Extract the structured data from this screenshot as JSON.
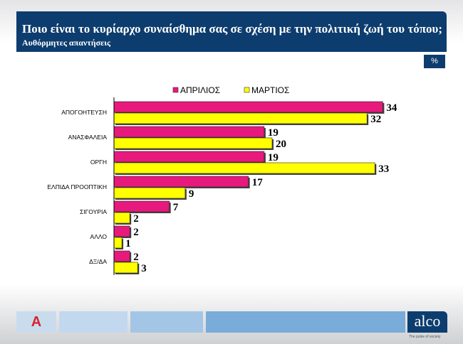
{
  "header": {
    "title": "Ποιο είναι το κυρίαρχο συναίσθημα σας σε σχέση με την πολιτική ζωή του τόπου;",
    "subtitle": "Αυθόρμητες απαντήσεις",
    "unit": "%"
  },
  "footer": {
    "brand": "alco",
    "tagline": "The pulse of society",
    "left_logo": "A"
  },
  "chart_data": {
    "type": "bar",
    "orientation": "horizontal",
    "title": "Ποιο είναι το κυρίαρχο συναίσθημα σας σε σχέση με την πολιτική ζωή του τόπου;",
    "categories": [
      "ΑΠΟΓΟΗΤΕΥΣΗ",
      "ΑΝΑΣΦΑΛΕΙΑ",
      "ΟΡΓΗ",
      "ΕΛΠΙΔΑ ΠΡΟΟΠΤΙΚΗ",
      "ΣΙΓΟΥΡΙΑ",
      "ΑΛΛΟ",
      "ΔΞ/ΔΑ"
    ],
    "series": [
      {
        "name": "ΑΠΡΙΛΙΟΣ",
        "color": "#e8197d",
        "values": [
          34,
          19,
          19,
          17,
          7,
          2,
          2
        ]
      },
      {
        "name": "ΜΑΡΤΙΟΣ",
        "color": "#ffff00",
        "values": [
          32,
          20,
          33,
          9,
          2,
          1,
          3
        ]
      }
    ],
    "legend": "top",
    "xlim": [
      0,
      35
    ]
  }
}
